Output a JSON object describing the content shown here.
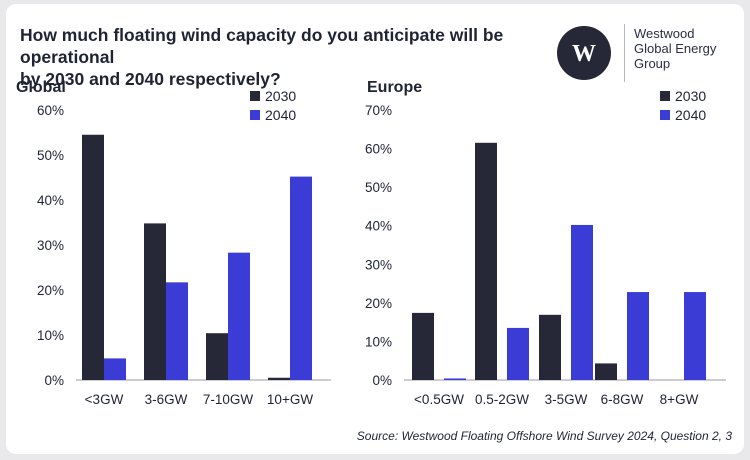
{
  "header": {
    "title_line1": "How much floating wind capacity do you anticipate will be operational",
    "title_line2": "by 2030 and 2040 respectively?"
  },
  "logo": {
    "mark": "W",
    "line1": "Westwood",
    "line2": "Global Energy",
    "line3": "Group"
  },
  "colors": {
    "series_2030": "#262838",
    "series_2040": "#3b3bd6",
    "text": "#1f2333"
  },
  "chart_data": [
    {
      "type": "bar",
      "title": "Global",
      "categories": [
        "<3GW",
        "3-6GW",
        "7-10GW",
        "10+GW"
      ],
      "series": [
        {
          "name": "2030",
          "values": [
            54.5,
            34.8,
            10.4,
            0.5
          ]
        },
        {
          "name": "2040",
          "values": [
            4.8,
            21.7,
            28.3,
            45.2
          ]
        }
      ],
      "ylim": [
        0,
        60
      ],
      "yticks": [
        0,
        10,
        20,
        30,
        40,
        50,
        60
      ],
      "tick_suffix": "%",
      "legend": "top-right"
    },
    {
      "type": "bar",
      "title": "Europe",
      "categories": [
        "<0.5GW",
        "0.5-2GW",
        "3-5GW",
        "6-8GW",
        "8+GW"
      ],
      "series": [
        {
          "name": "2030",
          "values": [
            17.4,
            61.5,
            16.9,
            4.3,
            0
          ]
        },
        {
          "name": "2040",
          "values": [
            0.4,
            13.5,
            40.2,
            22.8,
            22.8
          ]
        }
      ],
      "ylim": [
        0,
        70
      ],
      "yticks": [
        0,
        10,
        20,
        30,
        40,
        50,
        60,
        70
      ],
      "tick_suffix": "%",
      "legend": "top-right"
    }
  ],
  "footer": {
    "source": "Source: Westwood Floating Offshore Wind Survey 2024, Question 2, 3"
  }
}
